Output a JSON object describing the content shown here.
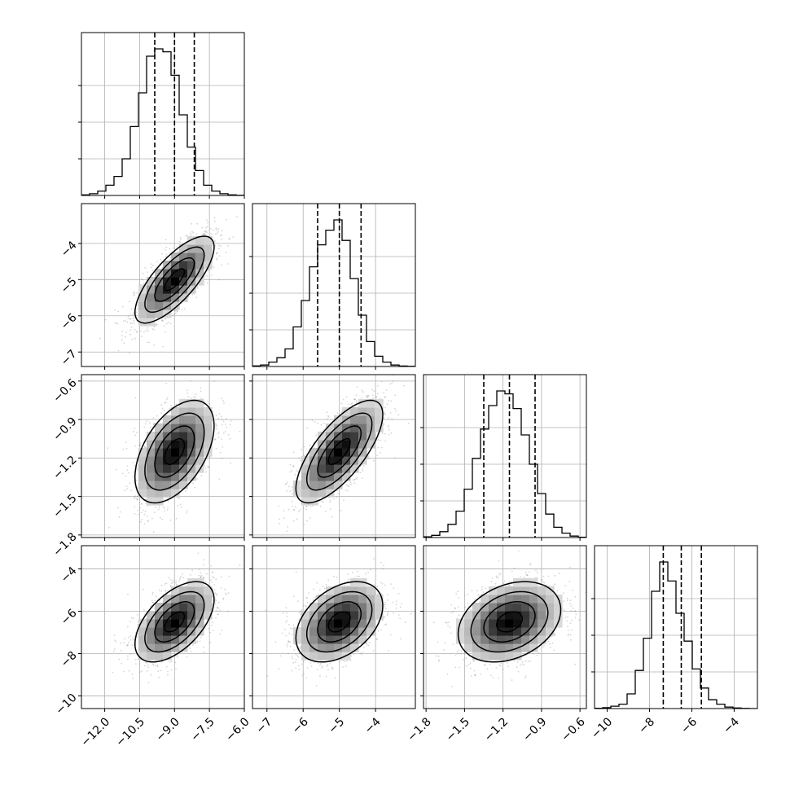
{
  "chart_data": {
    "type": "corner",
    "params": [
      {
        "range": [
          -13.0,
          -6.0
        ],
        "ticks": [
          -12.0,
          -10.5,
          -9.0,
          -7.5,
          -6.0
        ],
        "tick_labels": [
          "−12.0",
          "−10.5",
          "−9.0",
          "−7.5",
          "−6.0"
        ],
        "quantiles": [
          -9.85,
          -9.0,
          -8.15
        ]
      },
      {
        "range": [
          -7.4,
          -2.9
        ],
        "ticks": [
          -7,
          -6,
          -5,
          -4
        ],
        "tick_labels": [
          "−7",
          "−6",
          "−5",
          "−4"
        ],
        "quantiles": [
          -5.6,
          -5.0,
          -4.4
        ]
      },
      {
        "range": [
          -1.82,
          -0.55
        ],
        "ticks": [
          -1.8,
          -1.5,
          -1.2,
          -0.9,
          -0.6
        ],
        "tick_labels": [
          "−1.8",
          "−1.5",
          "−1.2",
          "−0.9",
          "−0.6"
        ],
        "quantiles": [
          -1.35,
          -1.15,
          -0.95
        ]
      },
      {
        "range": [
          -10.6,
          -2.9
        ],
        "ticks": [
          -10,
          -8,
          -6,
          -4
        ],
        "tick_labels": [
          "−10",
          "−8",
          "−6",
          "−4"
        ],
        "quantiles": [
          -7.35,
          -6.5,
          -5.55
        ]
      }
    ],
    "histograms": [
      {
        "param": 0,
        "bins": 20,
        "counts": [
          0.004,
          0.012,
          0.03,
          0.07,
          0.13,
          0.25,
          0.47,
          0.7,
          0.95,
          1.0,
          0.98,
          0.82,
          0.55,
          0.33,
          0.17,
          0.07,
          0.03,
          0.012,
          0.004,
          0.001
        ]
      },
      {
        "param": 1,
        "bins": 20,
        "counts": [
          0.004,
          0.01,
          0.03,
          0.06,
          0.12,
          0.27,
          0.45,
          0.68,
          0.83,
          0.93,
          1.0,
          0.86,
          0.6,
          0.35,
          0.17,
          0.07,
          0.03,
          0.01,
          0.003,
          0.001
        ]
      },
      {
        "param": 2,
        "bins": 20,
        "counts": [
          0.005,
          0.015,
          0.04,
          0.09,
          0.18,
          0.33,
          0.54,
          0.74,
          0.9,
          1.0,
          0.98,
          0.88,
          0.7,
          0.5,
          0.3,
          0.16,
          0.07,
          0.03,
          0.01,
          0.002
        ]
      },
      {
        "param": 3,
        "bins": 20,
        "counts": [
          0.002,
          0.006,
          0.016,
          0.03,
          0.1,
          0.26,
          0.48,
          0.8,
          1.0,
          0.87,
          0.65,
          0.46,
          0.27,
          0.14,
          0.06,
          0.03,
          0.01,
          0.004,
          0.001,
          0.0
        ]
      }
    ],
    "pairs": [
      {
        "x_param": 0,
        "y_param": 1,
        "center": [
          -9.0,
          -5.0
        ],
        "sd": [
          0.85,
          0.6
        ],
        "rho": 0.75
      },
      {
        "x_param": 0,
        "y_param": 2,
        "center": [
          -9.0,
          -1.15
        ],
        "sd": [
          0.85,
          0.2
        ],
        "rho": 0.5
      },
      {
        "x_param": 1,
        "y_param": 2,
        "center": [
          -5.0,
          -1.15
        ],
        "sd": [
          0.6,
          0.2
        ],
        "rho": 0.72
      },
      {
        "x_param": 0,
        "y_param": 3,
        "center": [
          -9.0,
          -6.5
        ],
        "sd": [
          0.85,
          0.95
        ],
        "rho": 0.55
      },
      {
        "x_param": 1,
        "y_param": 3,
        "center": [
          -5.0,
          -6.5
        ],
        "sd": [
          0.6,
          0.95
        ],
        "rho": 0.4
      },
      {
        "x_param": 2,
        "y_param": 3,
        "center": [
          -1.15,
          -6.5
        ],
        "sd": [
          0.2,
          0.95
        ],
        "rho": 0.3
      }
    ],
    "contour_levels_sigma": [
      0.5,
      1.0,
      1.5,
      2.0
    ],
    "grid": true,
    "quantile_line_style": "dashed",
    "title": "",
    "labels": [
      "",
      "",
      "",
      ""
    ]
  }
}
